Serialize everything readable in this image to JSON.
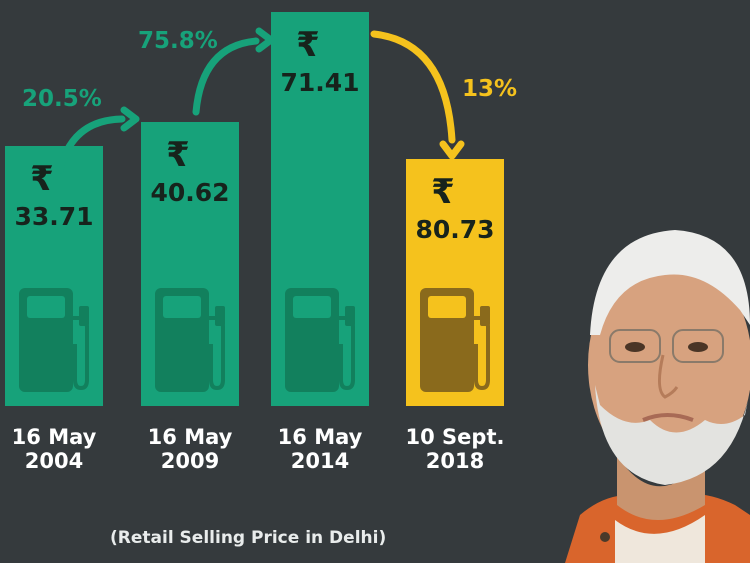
{
  "chart_data": {
    "type": "bar",
    "title": "",
    "currency_symbol": "₹",
    "categories": [
      "16 May\n2004",
      "16 May\n2009",
      "16 May\n2014",
      "10 Sept.\n2018"
    ],
    "values": [
      33.71,
      40.62,
      71.41,
      80.73
    ],
    "value_labels": [
      "33.71",
      "40.62",
      "71.41",
      "80.73"
    ],
    "bar_colors": [
      "#17a27a",
      "#17a27a",
      "#17a27a",
      "#f5c21d"
    ],
    "changes": [
      {
        "label": "20.5%",
        "color": "#17a27a"
      },
      {
        "label": "75.8%",
        "color": "#17a27a"
      },
      {
        "label": "13%",
        "color": "#f5c21d"
      }
    ],
    "footnote": "(Retail Selling Price in Delhi)",
    "legend": "none",
    "grid": false
  },
  "colors": {
    "background": "#353a3d",
    "green": "#17a27a",
    "yellow": "#f5c21d",
    "pump_green": "#12805d",
    "pump_yellow": "#8a6a1c"
  },
  "icons": [
    "rupee-icon",
    "fuel-pump-icon",
    "arrow-icon"
  ]
}
